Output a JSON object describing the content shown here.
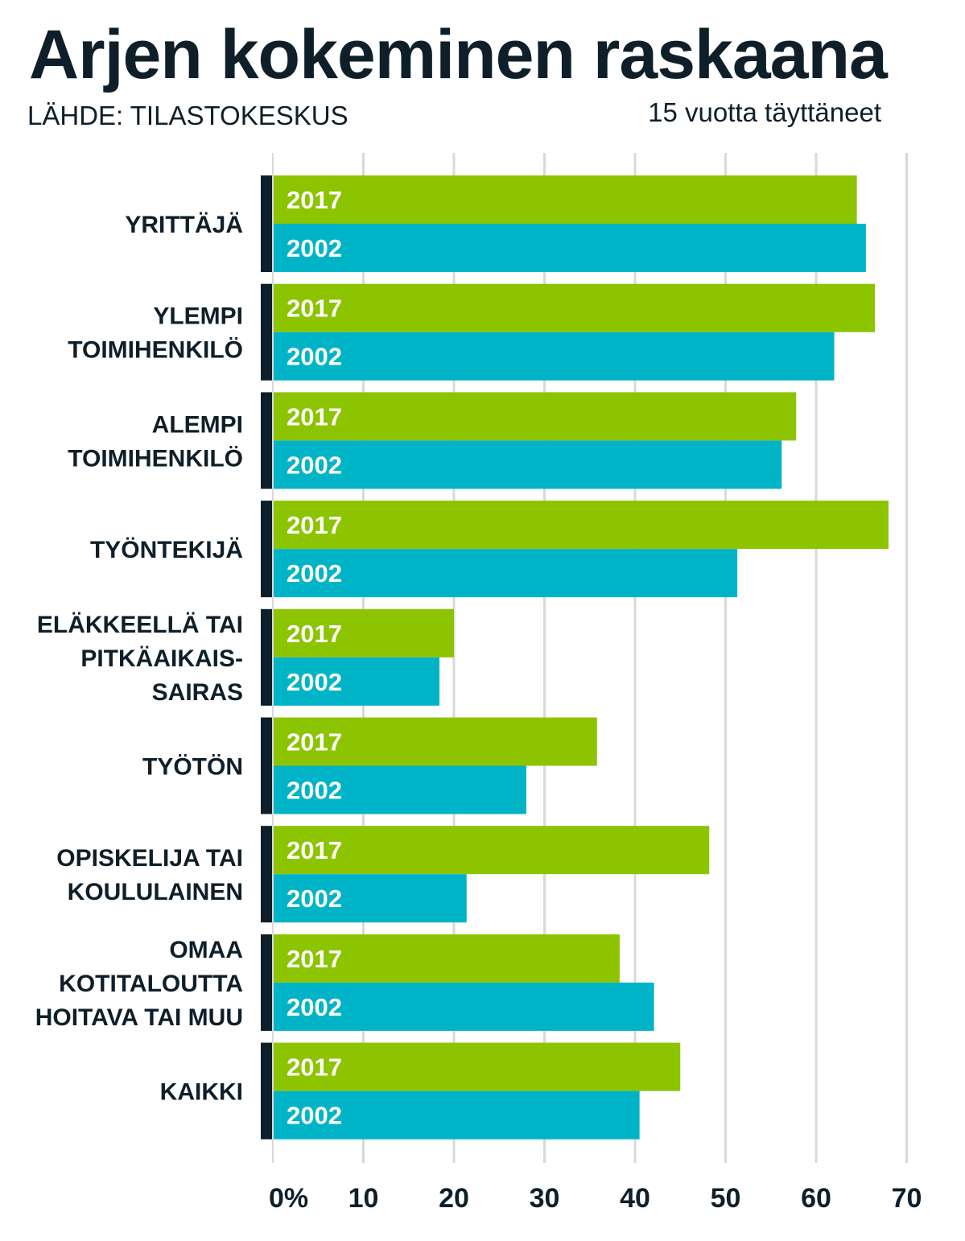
{
  "chart_data": {
    "type": "bar",
    "orientation": "horizontal",
    "title": "Arjen kokeminen raskaana",
    "source": "LÄHDE: TILASTOKESKUS",
    "subtitle": "15 vuotta täyttäneet",
    "categories": [
      [
        "YRITTÄJÄ"
      ],
      [
        "YLEMPI",
        "TOIMIHENKILÖ"
      ],
      [
        "ALEMPI",
        "TOIMIHENKILÖ"
      ],
      [
        "TYÖNTEKIJÄ"
      ],
      [
        "ELÄKKEELLÄ TAI",
        "PITKÄAIKAIS-",
        "SAIRAS"
      ],
      [
        "TYÖTÖN"
      ],
      [
        "OPISKELIJA TAI",
        "KOULULAINEN"
      ],
      [
        "OMAA",
        "KOTITALOUTTA",
        "HOITAVA TAI MUU"
      ],
      [
        "KAIKKI"
      ]
    ],
    "series": [
      {
        "name": "2017",
        "color": "#8dc400",
        "values": [
          64.5,
          66.5,
          57.8,
          68.0,
          20.0,
          35.8,
          48.2,
          38.3,
          45.0
        ]
      },
      {
        "name": "2002",
        "color": "#00b4c8",
        "values": [
          65.5,
          62.0,
          56.2,
          51.3,
          18.4,
          28.0,
          21.4,
          42.1,
          40.5
        ]
      }
    ],
    "xlim": [
      0,
      70
    ],
    "ticks": [
      0,
      10,
      20,
      30,
      40,
      50,
      60,
      70
    ],
    "tick_labels": [
      "0%",
      "10",
      "20",
      "30",
      "40",
      "50",
      "60",
      "70"
    ],
    "grid": true
  }
}
